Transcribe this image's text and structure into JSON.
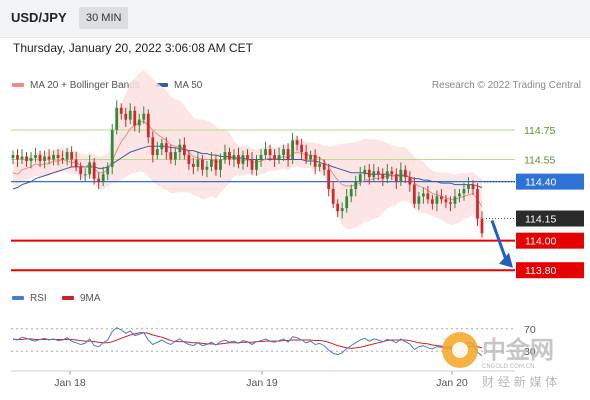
{
  "header": {
    "symbol": "USD/JPY",
    "interval": "30 MIN"
  },
  "timestamp": "Thursday, January 20, 2022 3:06:08 AM CET",
  "legend": {
    "ma20_bb": "MA 20 + Bollinger Bands",
    "ma50": "MA 50",
    "source": "Research © 2022 Trading Central",
    "rsi": "RSI",
    "nine_ma": "9MA"
  },
  "colors": {
    "ma20": "#f08a8a",
    "ma50": "#3b5b9a",
    "bollinger": "#fde0e0",
    "green_level": "#b9d98e",
    "blue_level": "#2f72d6",
    "red_level": "#e60000",
    "candle_up": "#2f8a3a",
    "candle_down": "#cc2b2b",
    "price_tag": "#2b2b2b",
    "arrow": "#1f5fbf"
  },
  "watermark": {
    "brand": "中金网",
    "domain": "CNGOLD.COM.CN",
    "tagline": "财 经 新 媒 体"
  },
  "chart_data": {
    "type": "candlestick",
    "ylim": [
      113.72,
      114.98
    ],
    "x_labels": [
      "Jan 18",
      "Jan 19",
      "Jan 20"
    ],
    "levels": [
      {
        "value": 114.75,
        "label": "114.75",
        "style": "green"
      },
      {
        "value": 114.55,
        "label": "114.55",
        "style": "green"
      },
      {
        "value": 114.4,
        "label": "114.40",
        "style": "blue"
      },
      {
        "value": 114.15,
        "label": "114.15",
        "style": "current"
      },
      {
        "value": 114.0,
        "label": "114.00",
        "style": "red"
      },
      {
        "value": 113.8,
        "label": "113.80",
        "style": "red"
      }
    ],
    "forecast_arrow": {
      "from": 114.15,
      "to": 113.85
    },
    "closes": [
      114.58,
      114.55,
      114.57,
      114.54,
      114.56,
      114.58,
      114.54,
      114.57,
      114.55,
      114.58,
      114.56,
      114.55,
      114.6,
      114.55,
      114.5,
      114.45,
      114.45,
      114.53,
      114.42,
      114.4,
      114.45,
      114.5,
      114.75,
      114.9,
      114.86,
      114.82,
      114.88,
      114.78,
      114.82,
      114.86,
      114.7,
      114.58,
      114.62,
      114.66,
      114.6,
      114.55,
      114.6,
      114.65,
      114.58,
      114.52,
      114.5,
      114.55,
      114.48,
      114.5,
      114.55,
      114.48,
      114.55,
      114.6,
      114.55,
      114.58,
      114.52,
      114.58,
      114.55,
      114.48,
      114.55,
      114.58,
      114.62,
      114.58,
      114.55,
      114.58,
      114.62,
      114.55,
      114.68,
      114.65,
      114.6,
      114.55,
      114.58,
      114.5,
      114.52,
      114.48,
      114.35,
      114.25,
      114.2,
      114.22,
      114.3,
      114.35,
      114.4,
      114.45,
      114.48,
      114.43,
      114.47,
      114.45,
      114.42,
      114.47,
      114.45,
      114.4,
      114.48,
      114.43,
      114.38,
      114.25,
      114.3,
      114.32,
      114.28,
      114.25,
      114.3,
      114.28,
      114.26,
      114.25,
      114.3,
      114.32,
      114.35,
      114.38,
      114.35,
      114.15,
      114.05
    ],
    "ma20": [
      114.46,
      114.45,
      114.48,
      114.49,
      114.5,
      114.52,
      114.51,
      114.52,
      114.52,
      114.54,
      114.54,
      114.55,
      114.54,
      114.53,
      114.53,
      114.51,
      114.5,
      114.52,
      114.49,
      114.46,
      114.46,
      114.48,
      114.54,
      114.61,
      114.67,
      114.71,
      114.76,
      114.78,
      114.8,
      114.81,
      114.78,
      114.75,
      114.72,
      114.7,
      114.68,
      114.65,
      114.64,
      114.64,
      114.62,
      114.6,
      114.57,
      114.56,
      114.55,
      114.55,
      114.55,
      114.53,
      114.54,
      114.56,
      114.56,
      114.56,
      114.54,
      114.54,
      114.55,
      114.53,
      114.53,
      114.54,
      114.55,
      114.56,
      114.55,
      114.56,
      114.57,
      114.56,
      114.59,
      114.6,
      114.59,
      114.58,
      114.58,
      114.57,
      114.56,
      114.54,
      114.5,
      114.45,
      114.41,
      114.38,
      114.37,
      114.37,
      114.38,
      114.39,
      114.41,
      114.41,
      114.42,
      114.42,
      114.43,
      114.44,
      114.44,
      114.44,
      114.45,
      114.45,
      114.43,
      114.39,
      114.37,
      114.36,
      114.34,
      114.32,
      114.31,
      114.3,
      114.29,
      114.28,
      114.28,
      114.29,
      114.3,
      114.31,
      114.32,
      114.28,
      114.23
    ],
    "ma50": [
      114.35,
      114.36,
      114.38,
      114.39,
      114.4,
      114.42,
      114.43,
      114.44,
      114.45,
      114.46,
      114.47,
      114.48,
      114.49,
      114.5,
      114.5,
      114.5,
      114.5,
      114.5,
      114.5,
      114.49,
      114.49,
      114.5,
      114.52,
      114.54,
      114.56,
      114.58,
      114.6,
      114.61,
      114.62,
      114.63,
      114.64,
      114.64,
      114.64,
      114.64,
      114.64,
      114.63,
      114.63,
      114.62,
      114.62,
      114.61,
      114.61,
      114.6,
      114.59,
      114.59,
      114.58,
      114.58,
      114.57,
      114.57,
      114.57,
      114.56,
      114.56,
      114.56,
      114.55,
      114.55,
      114.55,
      114.55,
      114.55,
      114.55,
      114.55,
      114.55,
      114.55,
      114.55,
      114.55,
      114.55,
      114.55,
      114.54,
      114.54,
      114.54,
      114.53,
      114.52,
      114.51,
      114.5,
      114.49,
      114.48,
      114.47,
      114.46,
      114.46,
      114.46,
      114.46,
      114.45,
      114.45,
      114.45,
      114.45,
      114.45,
      114.44,
      114.44,
      114.44,
      114.44,
      114.43,
      114.42,
      114.42,
      114.41,
      114.41,
      114.4,
      114.4,
      114.39,
      114.39,
      114.39,
      114.38,
      114.38,
      114.38,
      114.38,
      114.38,
      114.37,
      114.36
    ],
    "rsi": [
      52,
      50,
      55,
      53,
      50,
      48,
      51,
      53,
      50,
      52,
      49,
      50,
      54,
      48,
      45,
      42,
      44,
      52,
      40,
      38,
      45,
      50,
      65,
      72,
      68,
      62,
      66,
      58,
      60,
      63,
      50,
      42,
      46,
      50,
      45,
      42,
      48,
      52,
      46,
      42,
      40,
      45,
      40,
      42,
      46,
      41,
      47,
      50,
      46,
      48,
      44,
      49,
      47,
      42,
      47,
      49,
      52,
      48,
      46,
      49,
      52,
      46,
      56,
      54,
      50,
      45,
      48,
      42,
      44,
      40,
      32,
      26,
      24,
      27,
      35,
      40,
      45,
      50,
      53,
      48,
      52,
      50,
      47,
      51,
      49,
      45,
      52,
      47,
      43,
      33,
      38,
      40,
      36,
      34,
      38,
      37,
      35,
      34,
      38,
      40,
      43,
      46,
      43,
      28,
      22
    ],
    "rsi_ma9": [
      51,
      51,
      51,
      52,
      52,
      51,
      51,
      51,
      51,
      51,
      51,
      51,
      51,
      51,
      50,
      49,
      48,
      48,
      47,
      46,
      45,
      45,
      47,
      50,
      53,
      56,
      59,
      61,
      63,
      63,
      62,
      59,
      57,
      55,
      52,
      49,
      47,
      47,
      47,
      46,
      45,
      45,
      44,
      43,
      43,
      42,
      43,
      44,
      45,
      45,
      45,
      46,
      46,
      46,
      47,
      47,
      48,
      48,
      48,
      48,
      49,
      49,
      50,
      50,
      50,
      50,
      50,
      49,
      49,
      48,
      46,
      43,
      40,
      38,
      36,
      35,
      36,
      37,
      39,
      41,
      43,
      45,
      47,
      49,
      50,
      50,
      50,
      50,
      49,
      47,
      45,
      44,
      43,
      41,
      40,
      39,
      38,
      37,
      36,
      36,
      37,
      38,
      39,
      38,
      36
    ],
    "rsi_levels": [
      {
        "value": 70,
        "label": "70"
      },
      {
        "value": 30,
        "label": "30"
      }
    ]
  }
}
